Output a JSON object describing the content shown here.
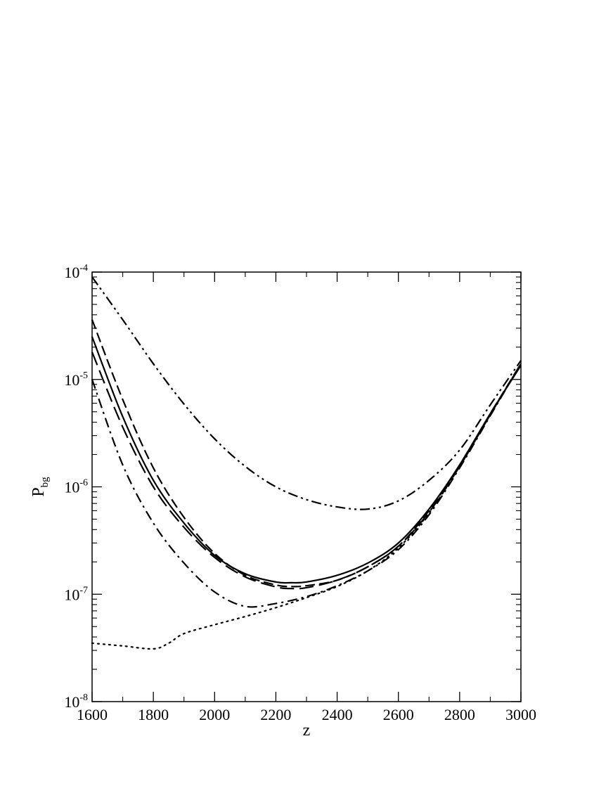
{
  "chart_data": {
    "type": "line",
    "title": "",
    "xlabel": "z",
    "ylabel": "P",
    "ylabel_sub": "bg",
    "xlim": [
      1600,
      3000
    ],
    "ylim": [
      1e-08,
      0.0001
    ],
    "yscale": "log",
    "grid": false,
    "legend": "none",
    "x_ticks": [
      {
        "value": 1600,
        "label": "1600"
      },
      {
        "value": 1800,
        "label": "1800"
      },
      {
        "value": 2000,
        "label": "2000"
      },
      {
        "value": 2200,
        "label": "2200"
      },
      {
        "value": 2400,
        "label": "2400"
      },
      {
        "value": 2600,
        "label": "2600"
      },
      {
        "value": 2800,
        "label": "2800"
      },
      {
        "value": 3000,
        "label": "3000"
      }
    ],
    "y_ticks": [
      {
        "value": 1e-08,
        "base": "10",
        "exp": "-8"
      },
      {
        "value": 1e-07,
        "base": "10",
        "exp": "-7"
      },
      {
        "value": 1e-06,
        "base": "10",
        "exp": "-6"
      },
      {
        "value": 1e-05,
        "base": "10",
        "exp": "-5"
      },
      {
        "value": 0.0001,
        "base": "10",
        "exp": "-4"
      }
    ],
    "series": [
      {
        "style": "solid",
        "points": [
          [
            1600,
            2.5e-05
          ],
          [
            1700,
            4.5e-06
          ],
          [
            1800,
            1.15e-06
          ],
          [
            1900,
            4.6e-07
          ],
          [
            2000,
            2.3e-07
          ],
          [
            2100,
            1.55e-07
          ],
          [
            2200,
            1.3e-07
          ],
          [
            2250,
            1.28e-07
          ],
          [
            2300,
            1.3e-07
          ],
          [
            2400,
            1.5e-07
          ],
          [
            2500,
            1.95e-07
          ],
          [
            2600,
            3e-07
          ],
          [
            2700,
            6.2e-07
          ],
          [
            2800,
            1.6e-06
          ],
          [
            2900,
            4.8e-06
          ],
          [
            3000,
            1.35e-05
          ]
        ]
      },
      {
        "style": "dash",
        "points": [
          [
            1600,
            3.6e-05
          ],
          [
            1700,
            6.5e-06
          ],
          [
            1800,
            1.5e-06
          ],
          [
            1900,
            5.2e-07
          ],
          [
            2000,
            2.4e-07
          ],
          [
            2100,
            1.5e-07
          ],
          [
            2200,
            1.22e-07
          ],
          [
            2250,
            1.18e-07
          ],
          [
            2300,
            1.2e-07
          ],
          [
            2400,
            1.35e-07
          ],
          [
            2500,
            1.8e-07
          ],
          [
            2600,
            2.8e-07
          ],
          [
            2700,
            6e-07
          ],
          [
            2800,
            1.6e-06
          ],
          [
            2900,
            4.8e-06
          ],
          [
            3000,
            1.4e-05
          ]
        ]
      },
      {
        "style": "dash-long",
        "points": [
          [
            1600,
            1.8e-05
          ],
          [
            1700,
            3.6e-06
          ],
          [
            1800,
            1e-06
          ],
          [
            1900,
            4.2e-07
          ],
          [
            2000,
            2.2e-07
          ],
          [
            2100,
            1.45e-07
          ],
          [
            2200,
            1.17e-07
          ],
          [
            2250,
            1.13e-07
          ],
          [
            2300,
            1.15e-07
          ],
          [
            2400,
            1.35e-07
          ],
          [
            2500,
            1.8e-07
          ],
          [
            2600,
            2.8e-07
          ],
          [
            2700,
            5.8e-07
          ],
          [
            2800,
            1.55e-06
          ],
          [
            2900,
            4.7e-06
          ],
          [
            3000,
            1.4e-05
          ]
        ]
      },
      {
        "style": "dash-dot",
        "points": [
          [
            1600,
            1e-05
          ],
          [
            1700,
            1.6e-06
          ],
          [
            1800,
            4.6e-07
          ],
          [
            1900,
            1.95e-07
          ],
          [
            2000,
            1.05e-07
          ],
          [
            2100,
            7.7e-08
          ],
          [
            2200,
            8.2e-08
          ],
          [
            2300,
            9.5e-08
          ],
          [
            2400,
            1.2e-07
          ],
          [
            2500,
            1.65e-07
          ],
          [
            2600,
            2.6e-07
          ],
          [
            2700,
            5.5e-07
          ],
          [
            2800,
            1.5e-06
          ],
          [
            2900,
            4.6e-06
          ],
          [
            3000,
            1.4e-05
          ]
        ]
      },
      {
        "style": "dash-dot-dot",
        "points": [
          [
            1600,
            9e-05
          ],
          [
            1700,
            3.6e-05
          ],
          [
            1800,
            1.4e-05
          ],
          [
            1900,
            5.9e-06
          ],
          [
            2000,
            2.8e-06
          ],
          [
            2100,
            1.55e-06
          ],
          [
            2200,
            1e-06
          ],
          [
            2300,
            7.6e-07
          ],
          [
            2400,
            6.5e-07
          ],
          [
            2500,
            6.2e-07
          ],
          [
            2600,
            7.4e-07
          ],
          [
            2700,
            1.15e-06
          ],
          [
            2800,
            2.2e-06
          ],
          [
            2900,
            5.8e-06
          ],
          [
            3000,
            1.5e-05
          ]
        ]
      },
      {
        "style": "dot",
        "points": [
          [
            1600,
            3.5e-08
          ],
          [
            1700,
            3.3e-08
          ],
          [
            1800,
            3.1e-08
          ],
          [
            1850,
            3.5e-08
          ],
          [
            1900,
            4.3e-08
          ],
          [
            2000,
            5.2e-08
          ],
          [
            2100,
            6.2e-08
          ],
          [
            2200,
            7.5e-08
          ],
          [
            2300,
            9.3e-08
          ],
          [
            2400,
            1.18e-07
          ],
          [
            2500,
            1.65e-07
          ],
          [
            2600,
            2.7e-07
          ],
          [
            2700,
            5.7e-07
          ],
          [
            2800,
            1.55e-06
          ],
          [
            2900,
            4.7e-06
          ],
          [
            3000,
            1.4e-05
          ]
        ]
      }
    ]
  }
}
